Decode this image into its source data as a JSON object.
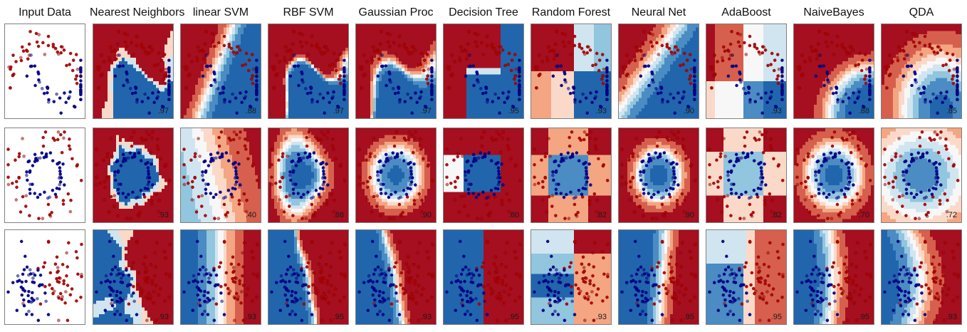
{
  "chart_data": {
    "type": "classifier-comparison",
    "columns": [
      "Input Data",
      "Nearest Neighbors",
      "linear SVM",
      "RBF SVM",
      "Gaussian Proc",
      "Decision Tree",
      "Random Forest",
      "Neural Net",
      "AdaBoost",
      "NaiveBayes",
      "QDA"
    ],
    "datasets": [
      "moons",
      "circles",
      "linearly_separable"
    ],
    "scores": [
      [
        "",
        ".97",
        ".88",
        ".97",
        ".97",
        ".95",
        ".93",
        ".90",
        ".93",
        ".88",
        ".85"
      ],
      [
        "",
        ".93",
        ".40",
        ".88",
        ".90",
        ".80",
        ".82",
        ".90",
        ".82",
        ".70",
        ".72"
      ],
      [
        "",
        ".93",
        ".93",
        ".95",
        ".93",
        ".95",
        ".93",
        ".95",
        ".95",
        ".95",
        ".93"
      ]
    ],
    "class_colors": {
      "class0": "#b40000",
      "class1": "#000096"
    },
    "colormap": "RdBu",
    "colormap_stops": [
      "#a50f1f",
      "#d6604d",
      "#f4a582",
      "#fbd9c8",
      "#f7f7f7",
      "#d1e5f0",
      "#92c5de",
      "#4a8cc3",
      "#2166ac"
    ],
    "axes_ticks": "none",
    "grid": false
  }
}
